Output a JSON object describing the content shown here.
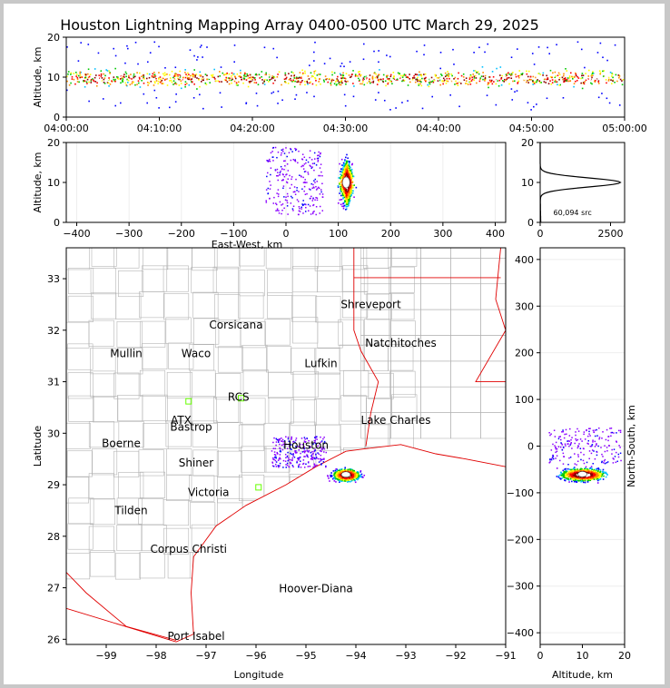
{
  "title": "Houston Lightning Mapping Array 0400-0500 UTC March 29, 2025",
  "chart_data": [
    {
      "panel": "time-altitude",
      "type": "scatter",
      "xlabel": "",
      "ylabel": "Altitude, km",
      "x_ticks": [
        "04:00:00",
        "04:10:00",
        "04:20:00",
        "04:30:00",
        "04:40:00",
        "04:50:00",
        "05:00:00"
      ],
      "y_ticks": [
        "0",
        "10",
        "20"
      ],
      "ylim": [
        0,
        20
      ],
      "core_altitude_km": [
        6,
        12
      ]
    },
    {
      "panel": "east-west-altitude",
      "type": "scatter",
      "xlabel": "East-West, km",
      "ylabel": "Altitude, km",
      "x_ticks": [
        "−400",
        "−300",
        "−200",
        "−100",
        "0",
        "100",
        "200",
        "300",
        "400"
      ],
      "y_ticks": [
        "0",
        "10",
        "20"
      ],
      "xlim": [
        -420,
        420
      ],
      "ylim": [
        0,
        20
      ],
      "core_center_km": 115,
      "core_altitude_km": 10
    },
    {
      "panel": "altitude-histogram",
      "type": "line",
      "annotation": "60,094 src",
      "x_ticks": [
        "0",
        "2500"
      ],
      "y_ticks": [
        "0",
        "10",
        "20"
      ],
      "xlim": [
        0,
        3000
      ],
      "ylim": [
        0,
        20
      ],
      "peak_altitude_km": 10,
      "peak_count": 2850
    },
    {
      "panel": "plan-view",
      "type": "scatter",
      "xlabel": "Longitude",
      "ylabel": "Latitude",
      "x_ticks": [
        "−99",
        "−98",
        "−97",
        "−96",
        "−95",
        "−94",
        "−93",
        "−92",
        "−91"
      ],
      "y_ticks": [
        "26",
        "27",
        "28",
        "29",
        "30",
        "31",
        "32",
        "33"
      ],
      "xlim": [
        -99.8,
        -91
      ],
      "ylim": [
        25.9,
        33.6
      ],
      "storm_center": {
        "lon": -94.2,
        "lat": 29.2
      }
    },
    {
      "panel": "altitude-north-south",
      "type": "scatter",
      "xlabel": "Altitude, km",
      "ylabel": "North-South, km",
      "x_ticks": [
        "0",
        "10",
        "20"
      ],
      "y_ticks": [
        "−400",
        "−300",
        "−200",
        "−100",
        "0",
        "100",
        "200",
        "300",
        "400"
      ],
      "xlim": [
        0,
        20
      ],
      "ylim": [
        -425,
        425
      ],
      "core_center_km": -60
    }
  ],
  "map_labels": [
    {
      "name": "Shreveport",
      "lon": -93.7,
      "lat": 32.5,
      "color": "#000000"
    },
    {
      "name": "Corsicana",
      "lon": -96.4,
      "lat": 32.1,
      "color": "#000000"
    },
    {
      "name": "Natchitoches",
      "lon": -93.1,
      "lat": 31.75,
      "color": "#000000"
    },
    {
      "name": "Mullin",
      "lon": -98.6,
      "lat": 31.55,
      "color": "#ff7f2a"
    },
    {
      "name": "Waco",
      "lon": -97.2,
      "lat": 31.55,
      "color": "#000000"
    },
    {
      "name": "Lufkin",
      "lon": -94.7,
      "lat": 31.35,
      "color": "#000000"
    },
    {
      "name": "RCS",
      "lon": -96.35,
      "lat": 30.7,
      "color": "#b00000"
    },
    {
      "name": "ATX",
      "lon": -97.5,
      "lat": 30.25,
      "color": "#ff7f2a"
    },
    {
      "name": "Lake Charles",
      "lon": -93.2,
      "lat": 30.25,
      "color": "#000000"
    },
    {
      "name": "Bastrop",
      "lon": -97.3,
      "lat": 30.12,
      "color": "#000000"
    },
    {
      "name": "Boerne",
      "lon": -98.7,
      "lat": 29.8,
      "color": "#000000"
    },
    {
      "name": "Houston",
      "lon": -95.0,
      "lat": 29.77,
      "color": "#ffa500"
    },
    {
      "name": "Shiner",
      "lon": -97.2,
      "lat": 29.42,
      "color": "#000000"
    },
    {
      "name": "Victoria",
      "lon": -96.95,
      "lat": 28.85,
      "color": "#000000"
    },
    {
      "name": "Tilden",
      "lon": -98.5,
      "lat": 28.5,
      "color": "#000000"
    },
    {
      "name": "Corpus Christi",
      "lon": -97.35,
      "lat": 27.75,
      "color": "#000000"
    },
    {
      "name": "Hoover-Diana",
      "lon": -94.8,
      "lat": 26.98,
      "color": "#2020d0"
    },
    {
      "name": "Port Isabel",
      "lon": -97.2,
      "lat": 26.06,
      "color": "#000000"
    }
  ],
  "colors": {
    "palette": [
      "#8b00ff",
      "#0000ff",
      "#00bfff",
      "#00c800",
      "#ffff00",
      "#ff8c00",
      "#ff0000",
      "#8b0000",
      "#ffffff"
    ],
    "state_border": "#e00000",
    "county_border": "#b4b4b4",
    "radar_marker": "#66ff00"
  }
}
